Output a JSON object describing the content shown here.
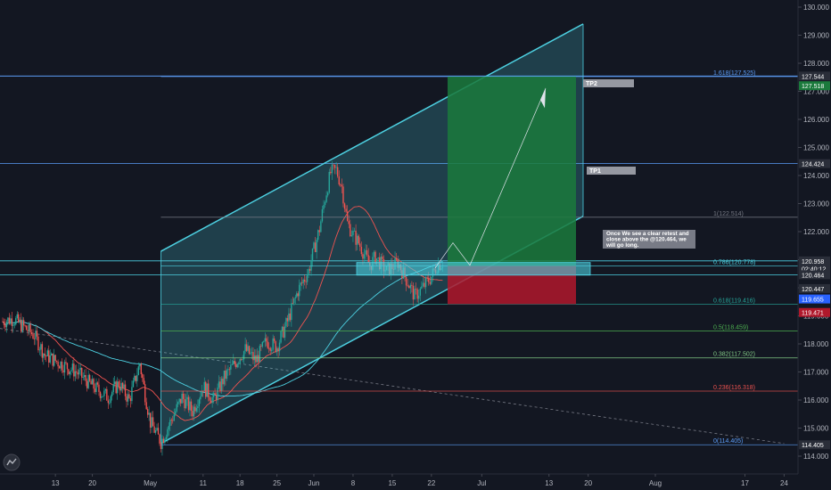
{
  "chart_data": {
    "type": "candlestick",
    "title": "",
    "xlabel": "",
    "ylabel": "",
    "ylim": [
      113.6,
      130.2
    ],
    "y_ticks": [
      "114.000",
      "115.000",
      "116.000",
      "117.000",
      "118.000",
      "119.000",
      "120.000",
      "121.000",
      "122.000",
      "123.000",
      "124.000",
      "125.000",
      "126.000",
      "127.000",
      "128.000",
      "129.000",
      "130.000"
    ],
    "y_tick_values": [
      114,
      115,
      116,
      117,
      118,
      119,
      120,
      121,
      122,
      123,
      124,
      125,
      126,
      127,
      128,
      129,
      130
    ],
    "x_ticks": [
      {
        "label": "13",
        "day": 13
      },
      {
        "label": "20",
        "day": 20
      },
      {
        "label": "May",
        "day": 31
      },
      {
        "label": "11",
        "day": 41
      },
      {
        "label": "18",
        "day": 48
      },
      {
        "label": "25",
        "day": 55
      },
      {
        "label": "Jun",
        "day": 62
      },
      {
        "label": "8",
        "day": 69
      },
      {
        "label": "15",
        "day": 76
      },
      {
        "label": "22",
        "day": 83
      },
      {
        "label": "Jul",
        "day": 92
      },
      {
        "label": "13",
        "day": 104
      },
      {
        "label": "20",
        "day": 111
      },
      {
        "label": "Aug",
        "day": 123
      },
      {
        "label": "17",
        "day": 139
      },
      {
        "label": "24",
        "day": 146
      }
    ],
    "x_range": [
      3,
      150
    ],
    "price_path": [
      [
        3,
        118.8
      ],
      [
        5,
        118.9
      ],
      [
        7,
        118.6
      ],
      [
        9,
        118.3
      ],
      [
        11,
        117.6
      ],
      [
        14,
        117.3
      ],
      [
        17,
        117.0
      ],
      [
        20,
        116.5
      ],
      [
        23,
        116.1
      ],
      [
        25,
        116.6
      ],
      [
        27,
        116.0
      ],
      [
        29,
        117.3
      ],
      [
        30,
        116.2
      ],
      [
        31,
        115.2
      ],
      [
        33,
        114.5
      ],
      [
        35,
        115.3
      ],
      [
        37,
        116.1
      ],
      [
        39,
        115.6
      ],
      [
        41,
        116.5
      ],
      [
        43,
        116.0
      ],
      [
        45,
        116.8
      ],
      [
        47,
        117.3
      ],
      [
        49,
        117.8
      ],
      [
        51,
        117.4
      ],
      [
        53,
        118.1
      ],
      [
        55,
        117.9
      ],
      [
        57,
        118.8
      ],
      [
        59,
        119.9
      ],
      [
        61,
        120.6
      ],
      [
        63,
        122.1
      ],
      [
        64,
        123.2
      ],
      [
        65,
        124.1
      ],
      [
        66,
        124.2
      ],
      [
        67,
        123.6
      ],
      [
        68,
        122.3
      ],
      [
        69,
        121.9
      ],
      [
        70,
        121.6
      ],
      [
        71,
        121.2
      ],
      [
        72,
        120.8
      ],
      [
        73,
        121.1
      ],
      [
        75,
        120.6
      ],
      [
        77,
        120.9
      ],
      [
        79,
        120.1
      ],
      [
        80,
        119.7
      ],
      [
        81,
        119.9
      ],
      [
        83,
        120.4
      ],
      [
        84,
        120.8
      ],
      [
        85,
        120.9
      ]
    ],
    "fib_levels": [
      {
        "label": "1.618(127.525)",
        "value": 127.525
      },
      {
        "label": "1(122.514)",
        "value": 122.514
      },
      {
        "label": "0.786(120.778)",
        "value": 120.778
      },
      {
        "label": "0.618(119.416)",
        "value": 119.416
      },
      {
        "label": "0.5(118.459)",
        "value": 118.459
      },
      {
        "label": "0.382(117.502)",
        "value": 117.502
      },
      {
        "label": "0.236(116.318)",
        "value": 116.318
      },
      {
        "label": "0(114.405)",
        "value": 114.405
      }
    ],
    "price_badges": [
      {
        "label": "127.544",
        "value": 127.544,
        "color": "#2a2e39"
      },
      {
        "label": "127.518",
        "value": 127.2,
        "color": "#1b7a3c"
      },
      {
        "label": "124.424",
        "value": 124.424,
        "color": "#2a2e39"
      },
      {
        "label": "120.958",
        "value": 120.958,
        "color": "#2a2e39"
      },
      {
        "label": "02:40:12",
        "value": 120.68,
        "color": "#2a2e39"
      },
      {
        "label": "120.464",
        "value": 120.464,
        "color": "#2a2e39"
      },
      {
        "label": "120.447",
        "value": 119.97,
        "color": "#2a2e39"
      },
      {
        "label": "119.655",
        "value": 119.6,
        "color": "#2962ff"
      },
      {
        "label": "119.471",
        "value": 119.12,
        "color": "#b0182b"
      },
      {
        "label": "114.405",
        "value": 114.405,
        "color": "#2a2e39"
      }
    ],
    "annotations": {
      "tp2": "TP2",
      "tp1": "TP1",
      "note": "Once We see a clear retest and close above the @120.464, we will go long."
    },
    "colors": {
      "background": "#131722",
      "bull": "#26a69a",
      "bear": "#ef5350",
      "channel": "#4dd0e1",
      "profit": "#1b7a3c",
      "loss": "#b0182b",
      "axis_text": "#b2b5be"
    }
  }
}
